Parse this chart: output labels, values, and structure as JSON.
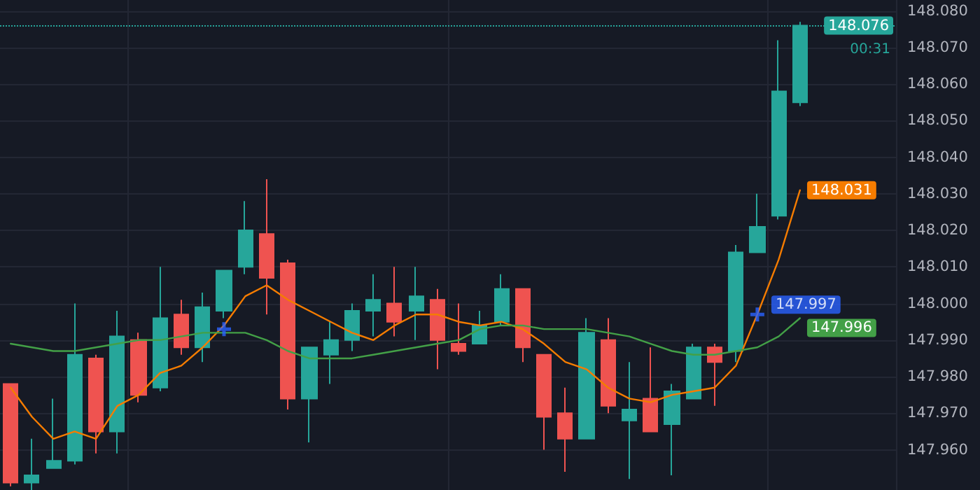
{
  "chart_data": {
    "type": "candlestick",
    "categories": [
      null,
      null,
      null,
      null,
      null,
      null,
      null,
      null,
      null,
      null,
      null,
      null,
      null,
      null,
      null,
      null,
      null,
      null,
      null,
      null,
      null,
      null,
      null,
      null,
      null,
      null,
      null,
      null,
      null,
      null,
      null,
      null,
      null,
      null,
      null,
      null,
      null,
      null,
      null,
      null,
      null,
      null
    ],
    "ohlc": [
      [
        147.978,
        147.978,
        147.95,
        147.951
      ],
      [
        147.951,
        147.963,
        147.949,
        147.953
      ],
      [
        147.955,
        147.974,
        147.955,
        147.957
      ],
      [
        147.957,
        148.0,
        147.956,
        147.986
      ],
      [
        147.985,
        147.986,
        147.959,
        147.965
      ],
      [
        147.965,
        147.998,
        147.959,
        147.991
      ],
      [
        147.99,
        147.992,
        147.973,
        147.975
      ],
      [
        147.977,
        148.01,
        147.976,
        147.996
      ],
      [
        147.997,
        148.001,
        147.986,
        147.988
      ],
      [
        147.988,
        148.003,
        147.984,
        147.999
      ],
      [
        147.998,
        148.009,
        147.996,
        148.009
      ],
      [
        148.01,
        148.028,
        148.008,
        148.02
      ],
      [
        148.019,
        148.034,
        147.997,
        148.007
      ],
      [
        148.011,
        148.012,
        147.971,
        147.974
      ],
      [
        147.974,
        147.988,
        147.962,
        147.988
      ],
      [
        147.986,
        147.995,
        147.978,
        147.99
      ],
      [
        147.99,
        148.0,
        147.987,
        147.998
      ],
      [
        147.998,
        148.008,
        147.991,
        148.001
      ],
      [
        148.0,
        148.01,
        147.991,
        147.995
      ],
      [
        147.998,
        148.01,
        147.99,
        148.002
      ],
      [
        148.001,
        148.004,
        147.982,
        147.99
      ],
      [
        147.989,
        148.0,
        147.986,
        147.987
      ],
      [
        147.989,
        147.998,
        147.989,
        147.994
      ],
      [
        147.995,
        148.008,
        147.994,
        148.004
      ],
      [
        148.004,
        148.004,
        147.984,
        147.988
      ],
      [
        147.986,
        147.986,
        147.96,
        147.969
      ],
      [
        147.97,
        147.977,
        147.954,
        147.963
      ],
      [
        147.963,
        147.996,
        147.963,
        147.992
      ],
      [
        147.99,
        147.996,
        147.97,
        147.972
      ],
      [
        147.968,
        147.984,
        147.952,
        147.971
      ],
      [
        147.974,
        147.988,
        147.965,
        147.965
      ],
      [
        147.967,
        147.978,
        147.953,
        147.976
      ],
      [
        147.974,
        147.989,
        147.974,
        147.988
      ],
      [
        147.988,
        147.989,
        147.972,
        147.984
      ],
      [
        147.987,
        148.016,
        147.984,
        148.014
      ],
      [
        148.014,
        148.03,
        148.014,
        148.021
      ],
      [
        148.024,
        148.072,
        148.023,
        148.058
      ],
      [
        148.055,
        148.077,
        148.054,
        148.076
      ],
      null,
      null,
      null,
      null
    ],
    "colors": [
      "#ef5350",
      "#26a69a",
      "#26a69a",
      "#26a69a",
      "#ef5350",
      "#26a69a",
      "#ef5350",
      "#26a69a",
      "#ef5350",
      "#26a69a",
      "#26a69a",
      "#26a69a",
      "#ef5350",
      "#ef5350",
      "#26a69a",
      "#26a69a",
      "#26a69a",
      "#26a69a",
      "#ef5350",
      "#26a69a",
      "#ef5350",
      "#ef5350",
      "#26a69a",
      "#26a69a",
      "#ef5350",
      "#ef5350",
      "#ef5350",
      "#26a69a",
      "#ef5350",
      "#26a69a",
      "#ef5350",
      "#26a69a",
      "#26a69a",
      "#ef5350",
      "#26a69a",
      "#26a69a",
      "#26a69a",
      "#26a69a",
      null,
      null,
      null,
      null
    ],
    "series": [
      {
        "type": "line",
        "color": "#f57c00",
        "marker": "none",
        "values": [
          147.977,
          147.969,
          147.963,
          147.965,
          147.963,
          147.972,
          147.975,
          147.981,
          147.983,
          147.988,
          147.994,
          148.002,
          148.005,
          148.001,
          147.998,
          147.995,
          147.992,
          147.99,
          147.994,
          147.997,
          147.997,
          147.995,
          147.994,
          147.995,
          147.993,
          147.989,
          147.984,
          147.982,
          147.977,
          147.974,
          147.973,
          147.975,
          147.976,
          147.977,
          147.983,
          147.997,
          148.012,
          148.031,
          null,
          null,
          null,
          null
        ],
        "value_labels": [
          null,
          null,
          null,
          null,
          null,
          null,
          null,
          null,
          null,
          null,
          null,
          null,
          null,
          null,
          null,
          null,
          null,
          null,
          null,
          null,
          null,
          null,
          null,
          null,
          null,
          null,
          null,
          null,
          null,
          null,
          null,
          null,
          null,
          null,
          null,
          null,
          null,
          "148.031",
          null,
          null,
          null,
          null
        ]
      },
      {
        "type": "line",
        "color": "#43a047",
        "marker": "none",
        "values": [
          147.989,
          147.988,
          147.987,
          147.987,
          147.988,
          147.989,
          147.99,
          147.99,
          147.991,
          147.992,
          147.992,
          147.992,
          147.99,
          147.987,
          147.985,
          147.985,
          147.985,
          147.986,
          147.987,
          147.988,
          147.989,
          147.99,
          147.993,
          147.994,
          147.994,
          147.993,
          147.993,
          147.993,
          147.992,
          147.991,
          147.989,
          147.987,
          147.986,
          147.986,
          147.987,
          147.988,
          147.991,
          147.996,
          null,
          null,
          null,
          null
        ],
        "value_labels": [
          null,
          null,
          null,
          null,
          null,
          null,
          null,
          null,
          null,
          null,
          null,
          null,
          null,
          null,
          null,
          null,
          null,
          null,
          null,
          null,
          null,
          null,
          null,
          null,
          null,
          null,
          null,
          null,
          null,
          null,
          null,
          null,
          null,
          null,
          null,
          null,
          null,
          "147.996",
          null,
          null,
          null,
          null
        ]
      },
      {
        "type": "scatter",
        "color": "#2962ff",
        "marker": "cross",
        "values": [
          null,
          null,
          null,
          null,
          null,
          null,
          null,
          null,
          null,
          null,
          147.993,
          null,
          null,
          null,
          null,
          null,
          null,
          null,
          null,
          null,
          null,
          null,
          null,
          null,
          null,
          null,
          null,
          null,
          null,
          null,
          null,
          null,
          null,
          null,
          null,
          147.997,
          null,
          null,
          null,
          null,
          null,
          null
        ],
        "value_labels": [
          null,
          null,
          null,
          null,
          null,
          null,
          null,
          null,
          null,
          null,
          null,
          null,
          null,
          null,
          null,
          null,
          null,
          null,
          null,
          null,
          null,
          null,
          null,
          null,
          null,
          null,
          null,
          null,
          null,
          null,
          null,
          null,
          null,
          null,
          null,
          "147.997",
          null,
          null,
          null,
          null,
          null,
          null
        ]
      }
    ],
    "ylim": [
      147.949,
      148.083
    ],
    "yticks": [
      {
        "value": 147.96,
        "label": "147.960"
      },
      {
        "value": 147.97,
        "label": "147.970"
      },
      {
        "value": 147.98,
        "label": "147.980"
      },
      {
        "value": 147.99,
        "label": "147.990"
      },
      {
        "value": 148.0,
        "label": "148.000"
      },
      {
        "value": 148.01,
        "label": "148.010"
      },
      {
        "value": 148.02,
        "label": "148.020"
      },
      {
        "value": 148.03,
        "label": "148.030"
      },
      {
        "value": 148.04,
        "label": "148.040"
      },
      {
        "value": 148.05,
        "label": "148.050"
      },
      {
        "value": 148.06,
        "label": "148.060"
      },
      {
        "value": 148.07,
        "label": "148.070"
      },
      {
        "value": 148.08,
        "label": "148.080"
      }
    ],
    "grid": true,
    "tick_labels": "y",
    "ref_lines": [
      {
        "axis": "y",
        "value": 148.076,
        "label": "148.076",
        "color": "#26a69a",
        "line_style": "dotted"
      }
    ],
    "annotations": [
      "00:31"
    ]
  }
}
